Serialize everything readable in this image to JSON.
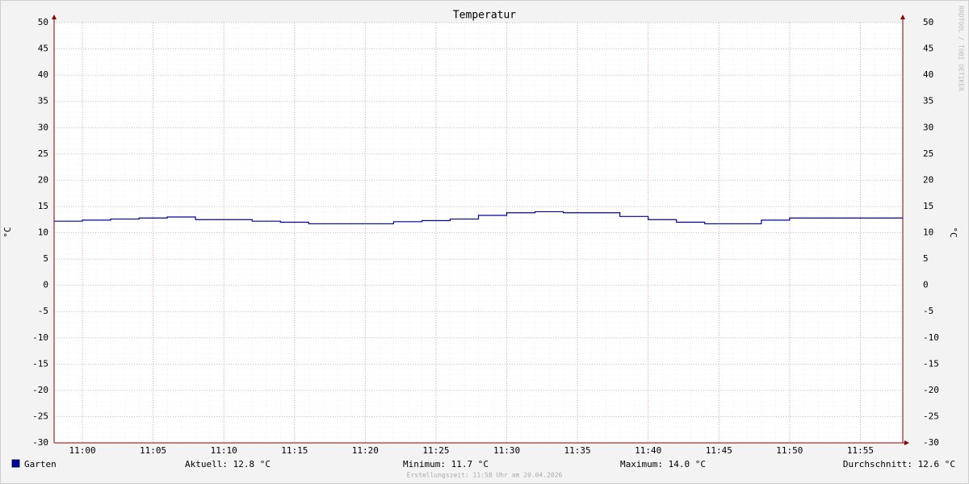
{
  "chart_data": {
    "type": "step",
    "title": "Temperatur",
    "ylabel": "°C",
    "watermark": "RRDTOOL / TOBI OETIKER",
    "x": [
      "10:58",
      "11:00",
      "11:02",
      "11:04",
      "11:06",
      "11:08",
      "11:10",
      "11:12",
      "11:14",
      "11:16",
      "11:18",
      "11:20",
      "11:22",
      "11:24",
      "11:26",
      "11:28",
      "11:30",
      "11:32",
      "11:34",
      "11:36",
      "11:38",
      "11:40",
      "11:42",
      "11:44",
      "11:46",
      "11:48",
      "11:50",
      "11:52",
      "11:54",
      "11:56",
      "11:58"
    ],
    "series": [
      {
        "name": "Garten",
        "color": "#0000a8",
        "values": [
          12.2,
          12.4,
          12.6,
          12.8,
          13.0,
          12.5,
          12.5,
          12.2,
          12.0,
          11.7,
          11.7,
          11.7,
          12.1,
          12.3,
          12.6,
          13.3,
          13.8,
          14.0,
          13.8,
          13.8,
          13.1,
          12.5,
          12.0,
          11.7,
          11.7,
          12.4,
          12.8,
          12.8,
          12.8,
          12.8,
          12.8
        ]
      }
    ],
    "xlim": [
      "10:58",
      "11:58"
    ],
    "xticks": [
      "11:00",
      "11:05",
      "11:10",
      "11:15",
      "11:20",
      "11:25",
      "11:30",
      "11:35",
      "11:40",
      "11:45",
      "11:50",
      "11:55"
    ],
    "ylim": [
      -30,
      50
    ],
    "yticks": [
      -30,
      -25,
      -20,
      -15,
      -10,
      -5,
      0,
      5,
      10,
      15,
      20,
      25,
      30,
      35,
      40,
      45,
      50
    ],
    "grid": true,
    "stats": [
      "Aktuell: 12.8 °C",
      "Minimum: 11.7 °C",
      "Maximum: 14.0 °C",
      "Durchschnitt: 12.6 °C"
    ],
    "footer": "Erstellungszeit: 11:58 Uhr am 20.04.2026"
  }
}
